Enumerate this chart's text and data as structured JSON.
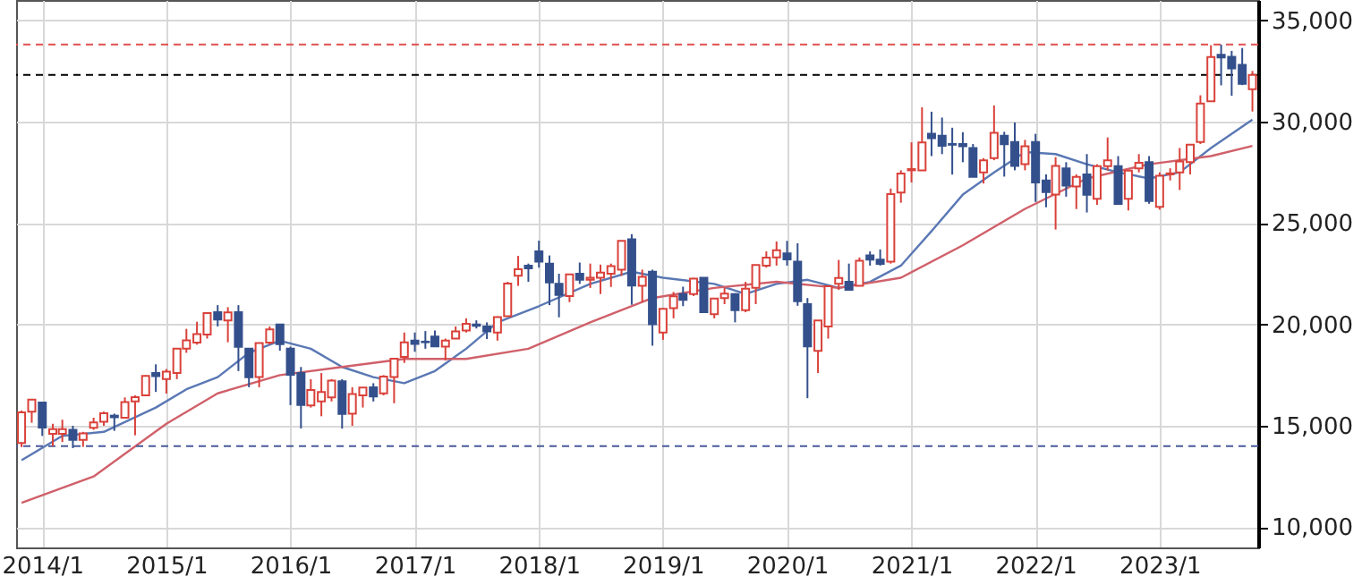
{
  "chart_data": {
    "type": "candlestick",
    "grid": true,
    "xlim": [
      "2013-10-16",
      "2023-10-18"
    ],
    "ylim": [
      9000,
      36000
    ],
    "xticks": [
      {
        "value": "2014-01",
        "label": "2014/1"
      },
      {
        "value": "2015-01",
        "label": "2015/1"
      },
      {
        "value": "2016-01",
        "label": "2016/1"
      },
      {
        "value": "2017-01",
        "label": "2017/1"
      },
      {
        "value": "2018-01",
        "label": "2018/1"
      },
      {
        "value": "2019-01",
        "label": "2019/1"
      },
      {
        "value": "2020-01",
        "label": "2020/1"
      },
      {
        "value": "2021-01",
        "label": "2021/1"
      },
      {
        "value": "2022-01",
        "label": "2022/1"
      },
      {
        "value": "2023-01",
        "label": "2023/1"
      }
    ],
    "yticks": [
      {
        "value": 10000,
        "label": "10,000"
      },
      {
        "value": 15000,
        "label": "15,000"
      },
      {
        "value": 20000,
        "label": "20,000"
      },
      {
        "value": 25000,
        "label": "25,000"
      },
      {
        "value": 30000,
        "label": "30,000"
      },
      {
        "value": 35000,
        "label": "35,000"
      }
    ],
    "ref_lines": [
      {
        "axis": "y",
        "value": 33800,
        "color": "#e05050",
        "line_style": "dashed"
      },
      {
        "axis": "y",
        "value": 32300,
        "color": "#000000",
        "line_style": "dashed"
      },
      {
        "axis": "y",
        "value": 14000,
        "color": "#4a5a9a",
        "line_style": "dashed"
      }
    ],
    "series": [
      {
        "type": "candlestick",
        "x": [
          "2013-11",
          "2013-12",
          "2014-01",
          "2014-02",
          "2014-03",
          "2014-04",
          "2014-05",
          "2014-06",
          "2014-07",
          "2014-08",
          "2014-09",
          "2014-10",
          "2014-11",
          "2014-12",
          "2015-01",
          "2015-02",
          "2015-03",
          "2015-04",
          "2015-05",
          "2015-06",
          "2015-07",
          "2015-08",
          "2015-09",
          "2015-10",
          "2015-11",
          "2015-12",
          "2016-01",
          "2016-02",
          "2016-03",
          "2016-04",
          "2016-05",
          "2016-06",
          "2016-07",
          "2016-08",
          "2016-09",
          "2016-10",
          "2016-11",
          "2016-12",
          "2017-01",
          "2017-02",
          "2017-03",
          "2017-04",
          "2017-05",
          "2017-06",
          "2017-07",
          "2017-08",
          "2017-09",
          "2017-10",
          "2017-11",
          "2017-12",
          "2018-01",
          "2018-02",
          "2018-03",
          "2018-04",
          "2018-05",
          "2018-06",
          "2018-07",
          "2018-08",
          "2018-09",
          "2018-10",
          "2018-11",
          "2018-12",
          "2019-01",
          "2019-02",
          "2019-03",
          "2019-04",
          "2019-05",
          "2019-06",
          "2019-07",
          "2019-08",
          "2019-09",
          "2019-10",
          "2019-11",
          "2019-12",
          "2020-01",
          "2020-02",
          "2020-03",
          "2020-04",
          "2020-05",
          "2020-06",
          "2020-07",
          "2020-08",
          "2020-09",
          "2020-10",
          "2020-11",
          "2020-12",
          "2021-01",
          "2021-02",
          "2021-03",
          "2021-04",
          "2021-05",
          "2021-06",
          "2021-07",
          "2021-08",
          "2021-09",
          "2021-10",
          "2021-11",
          "2021-12",
          "2022-01",
          "2022-02",
          "2022-03",
          "2022-04",
          "2022-05",
          "2022-06",
          "2022-07",
          "2022-08",
          "2022-09",
          "2022-10",
          "2022-11",
          "2022-12",
          "2023-01",
          "2023-02",
          "2023-03",
          "2023-04",
          "2023-05",
          "2023-06",
          "2023-07",
          "2023-08",
          "2023-09",
          "2023-10"
        ],
        "ohlc": [
          [
            14150,
            15750,
            13950,
            15660
          ],
          [
            15700,
            16320,
            15150,
            16290
          ],
          [
            16150,
            16160,
            14500,
            14910
          ],
          [
            14600,
            15100,
            14000,
            14840
          ],
          [
            14600,
            15300,
            14200,
            14830
          ],
          [
            14800,
            15000,
            13900,
            14300
          ],
          [
            14300,
            14700,
            13960,
            14630
          ],
          [
            14900,
            15400,
            14800,
            15160
          ],
          [
            15200,
            15700,
            15000,
            15620
          ],
          [
            15500,
            15600,
            14750,
            15420
          ],
          [
            15400,
            16400,
            15400,
            16170
          ],
          [
            16200,
            16500,
            14530,
            16410
          ],
          [
            16500,
            17500,
            16500,
            17460
          ],
          [
            17600,
            18030,
            16670,
            17450
          ],
          [
            17300,
            17800,
            16590,
            17670
          ],
          [
            17600,
            18800,
            17300,
            18800
          ],
          [
            18800,
            19780,
            18600,
            19210
          ],
          [
            19100,
            20130,
            19000,
            19520
          ],
          [
            19500,
            20600,
            19300,
            20560
          ],
          [
            20600,
            20950,
            19900,
            20240
          ],
          [
            20200,
            20850,
            19120,
            20590
          ],
          [
            20600,
            20950,
            17700,
            18890
          ],
          [
            18800,
            18800,
            16900,
            17390
          ],
          [
            17400,
            19100,
            16900,
            19080
          ],
          [
            19100,
            19900,
            19000,
            19750
          ],
          [
            20000,
            20000,
            18700,
            19030
          ],
          [
            18800,
            18900,
            16020,
            17520
          ],
          [
            17600,
            17900,
            14870,
            16030
          ],
          [
            16000,
            17300,
            15900,
            16760
          ],
          [
            16200,
            17600,
            15470,
            16670
          ],
          [
            16400,
            17300,
            16200,
            17230
          ],
          [
            17200,
            17300,
            14860,
            15580
          ],
          [
            15600,
            16900,
            15000,
            16570
          ],
          [
            16500,
            16900,
            15900,
            16890
          ],
          [
            16900,
            17100,
            16200,
            16450
          ],
          [
            16600,
            17500,
            16500,
            17430
          ],
          [
            17400,
            18350,
            16110,
            18310
          ],
          [
            18400,
            19600,
            18100,
            19110
          ],
          [
            19200,
            19600,
            18650,
            19040
          ],
          [
            19150,
            19670,
            18800,
            19120
          ],
          [
            19400,
            19700,
            18900,
            18910
          ],
          [
            18900,
            19300,
            18220,
            19200
          ],
          [
            19300,
            19900,
            19300,
            19650
          ],
          [
            19700,
            20300,
            19600,
            20030
          ],
          [
            20000,
            20200,
            19800,
            19930
          ],
          [
            19900,
            20100,
            19280,
            19650
          ],
          [
            19600,
            20400,
            19200,
            20360
          ],
          [
            20400,
            22100,
            20400,
            22010
          ],
          [
            22400,
            23380,
            21900,
            22720
          ],
          [
            22900,
            23000,
            22100,
            22760
          ],
          [
            23600,
            24130,
            22800,
            23100
          ],
          [
            23000,
            23400,
            20950,
            22070
          ],
          [
            22000,
            22500,
            20350,
            21450
          ],
          [
            21400,
            22500,
            21100,
            22470
          ],
          [
            22500,
            23050,
            22000,
            22200
          ],
          [
            22200,
            23000,
            21800,
            22300
          ],
          [
            22300,
            22950,
            21500,
            22550
          ],
          [
            22500,
            23000,
            21850,
            22870
          ],
          [
            22700,
            24120,
            22400,
            24120
          ],
          [
            24200,
            24450,
            20970,
            21920
          ],
          [
            21900,
            22700,
            21100,
            22350
          ],
          [
            22600,
            22700,
            18950,
            20010
          ],
          [
            19600,
            20800,
            19240,
            20770
          ],
          [
            20800,
            21600,
            20300,
            21390
          ],
          [
            21500,
            21860,
            20900,
            21210
          ],
          [
            21500,
            22300,
            21400,
            22260
          ],
          [
            22300,
            22300,
            20600,
            20600
          ],
          [
            20500,
            21300,
            20300,
            21280
          ],
          [
            21300,
            21800,
            21000,
            21520
          ],
          [
            21500,
            21540,
            20100,
            20700
          ],
          [
            20700,
            22100,
            20600,
            21760
          ],
          [
            21800,
            22950,
            21000,
            22930
          ],
          [
            22900,
            23600,
            22800,
            23290
          ],
          [
            23300,
            24090,
            22900,
            23660
          ],
          [
            23500,
            24120,
            22900,
            23210
          ],
          [
            23100,
            24000,
            20920,
            21140
          ],
          [
            21000,
            21300,
            16360,
            18920
          ],
          [
            18700,
            20200,
            17600,
            20190
          ],
          [
            19900,
            21900,
            19300,
            21880
          ],
          [
            22000,
            23180,
            21700,
            22290
          ],
          [
            22100,
            23000,
            21700,
            21710
          ],
          [
            21900,
            23300,
            21900,
            23140
          ],
          [
            23400,
            23600,
            22900,
            23190
          ],
          [
            23200,
            23700,
            22900,
            22980
          ],
          [
            23100,
            26700,
            23000,
            26430
          ],
          [
            26500,
            27600,
            26000,
            27440
          ],
          [
            27600,
            28980,
            27000,
            27660
          ],
          [
            27600,
            30710,
            27600,
            28970
          ],
          [
            29400,
            30490,
            28300,
            29180
          ],
          [
            29300,
            30200,
            28400,
            28810
          ],
          [
            28900,
            29700,
            27390,
            28860
          ],
          [
            28900,
            29480,
            28000,
            28790
          ],
          [
            28700,
            28900,
            27270,
            27280
          ],
          [
            27500,
            28200,
            26950,
            28090
          ],
          [
            28200,
            30800,
            28100,
            29450
          ],
          [
            29300,
            29500,
            27290,
            28890
          ],
          [
            29000,
            29960,
            27600,
            27820
          ],
          [
            27900,
            29100,
            27600,
            28790
          ],
          [
            29000,
            29400,
            26040,
            27000
          ],
          [
            27100,
            27400,
            25780,
            26530
          ],
          [
            26400,
            28250,
            24680,
            27820
          ],
          [
            27700,
            28000,
            26300,
            26850
          ],
          [
            26800,
            27400,
            25690,
            27280
          ],
          [
            27400,
            28400,
            25520,
            26390
          ],
          [
            26200,
            27900,
            25900,
            27800
          ],
          [
            27800,
            29220,
            27600,
            28090
          ],
          [
            27800,
            28300,
            25940,
            25940
          ],
          [
            26200,
            27600,
            25620,
            27590
          ],
          [
            27700,
            28400,
            27500,
            27970
          ],
          [
            28000,
            28300,
            25950,
            26090
          ],
          [
            25800,
            27500,
            25660,
            27330
          ],
          [
            27400,
            27700,
            27100,
            27450
          ],
          [
            27500,
            28700,
            26630,
            28040
          ],
          [
            28000,
            28900,
            27400,
            28860
          ],
          [
            29000,
            31300,
            28900,
            30890
          ],
          [
            31000,
            33770,
            31000,
            33190
          ],
          [
            33300,
            33800,
            31790,
            33170
          ],
          [
            33200,
            33490,
            31280,
            32620
          ],
          [
            32800,
            33630,
            31800,
            31860
          ],
          [
            31600,
            32500,
            30500,
            32300
          ]
        ],
        "colors": [
          "#d9413a",
          "#d9413a",
          "#34508c",
          "#d9413a",
          "#d9413a",
          "#34508c",
          "#d9413a",
          "#d9413a",
          "#d9413a",
          "#34508c",
          "#d9413a",
          "#d9413a",
          "#d9413a",
          "#34508c",
          "#d9413a",
          "#d9413a",
          "#d9413a",
          "#d9413a",
          "#d9413a",
          "#34508c",
          "#d9413a",
          "#34508c",
          "#34508c",
          "#d9413a",
          "#d9413a",
          "#34508c",
          "#34508c",
          "#34508c",
          "#d9413a",
          "#d9413a",
          "#d9413a",
          "#34508c",
          "#d9413a",
          "#d9413a",
          "#34508c",
          "#d9413a",
          "#d9413a",
          "#d9413a",
          "#34508c",
          "#34508c",
          "#34508c",
          "#d9413a",
          "#d9413a",
          "#d9413a",
          "#34508c",
          "#34508c",
          "#d9413a",
          "#d9413a",
          "#d9413a",
          "#34508c",
          "#34508c",
          "#34508c",
          "#34508c",
          "#d9413a",
          "#34508c",
          "#d9413a",
          "#d9413a",
          "#d9413a",
          "#d9413a",
          "#34508c",
          "#d9413a",
          "#34508c",
          "#d9413a",
          "#d9413a",
          "#34508c",
          "#d9413a",
          "#34508c",
          "#d9413a",
          "#d9413a",
          "#34508c",
          "#d9413a",
          "#d9413a",
          "#d9413a",
          "#d9413a",
          "#34508c",
          "#34508c",
          "#34508c",
          "#d9413a",
          "#d9413a",
          "#d9413a",
          "#34508c",
          "#d9413a",
          "#34508c",
          "#34508c",
          "#d9413a",
          "#d9413a",
          "#d9413a",
          "#d9413a",
          "#34508c",
          "#34508c",
          "#34508c",
          "#34508c",
          "#34508c",
          "#d9413a",
          "#d9413a",
          "#34508c",
          "#34508c",
          "#d9413a",
          "#34508c",
          "#34508c",
          "#d9413a",
          "#34508c",
          "#d9413a",
          "#34508c",
          "#d9413a",
          "#d9413a",
          "#34508c",
          "#d9413a",
          "#d9413a",
          "#34508c",
          "#d9413a",
          "#d9413a",
          "#d9413a",
          "#d9413a",
          "#d9413a",
          "#d9413a",
          "#34508c",
          "#34508c",
          "#34508c",
          "#d9413a"
        ]
      },
      {
        "type": "line",
        "color": "#5a78b4",
        "x": [
          "2013-11",
          "2014-03",
          "2014-07",
          "2014-12",
          "2015-03",
          "2015-06",
          "2015-09",
          "2015-12",
          "2016-03",
          "2016-06",
          "2016-09",
          "2016-12",
          "2017-03",
          "2017-06",
          "2017-09",
          "2018-01",
          "2018-06",
          "2018-10",
          "2019-01",
          "2019-06",
          "2019-09",
          "2019-12",
          "2020-03",
          "2020-06",
          "2020-09",
          "2020-12",
          "2021-03",
          "2021-06",
          "2021-09",
          "2021-12",
          "2022-03",
          "2022-06",
          "2022-09",
          "2022-12",
          "2023-03",
          "2023-06",
          "2023-10"
        ],
        "values": [
          13300,
          14500,
          14700,
          15900,
          16800,
          17400,
          18600,
          19200,
          18800,
          17900,
          17400,
          17100,
          17700,
          18800,
          20100,
          20900,
          22000,
          22600,
          22300,
          22000,
          21500,
          22000,
          22200,
          21800,
          22100,
          22900,
          24600,
          26400,
          27500,
          28500,
          28400,
          27900,
          27500,
          27200,
          27500,
          28700,
          30100
        ]
      },
      {
        "type": "line",
        "color": "#d0606a",
        "x": [
          "2013-11",
          "2014-06",
          "2015-01",
          "2015-06",
          "2015-12",
          "2016-06",
          "2016-12",
          "2017-06",
          "2017-12",
          "2018-06",
          "2018-12",
          "2019-06",
          "2019-12",
          "2020-06",
          "2020-12",
          "2021-06",
          "2021-12",
          "2022-06",
          "2022-12",
          "2023-06",
          "2023-10"
        ],
        "values": [
          11200,
          12500,
          15100,
          16600,
          17500,
          17900,
          18300,
          18300,
          18800,
          20100,
          21300,
          21800,
          22100,
          21800,
          22300,
          23900,
          25700,
          27200,
          27900,
          28300,
          28800
        ]
      }
    ]
  }
}
